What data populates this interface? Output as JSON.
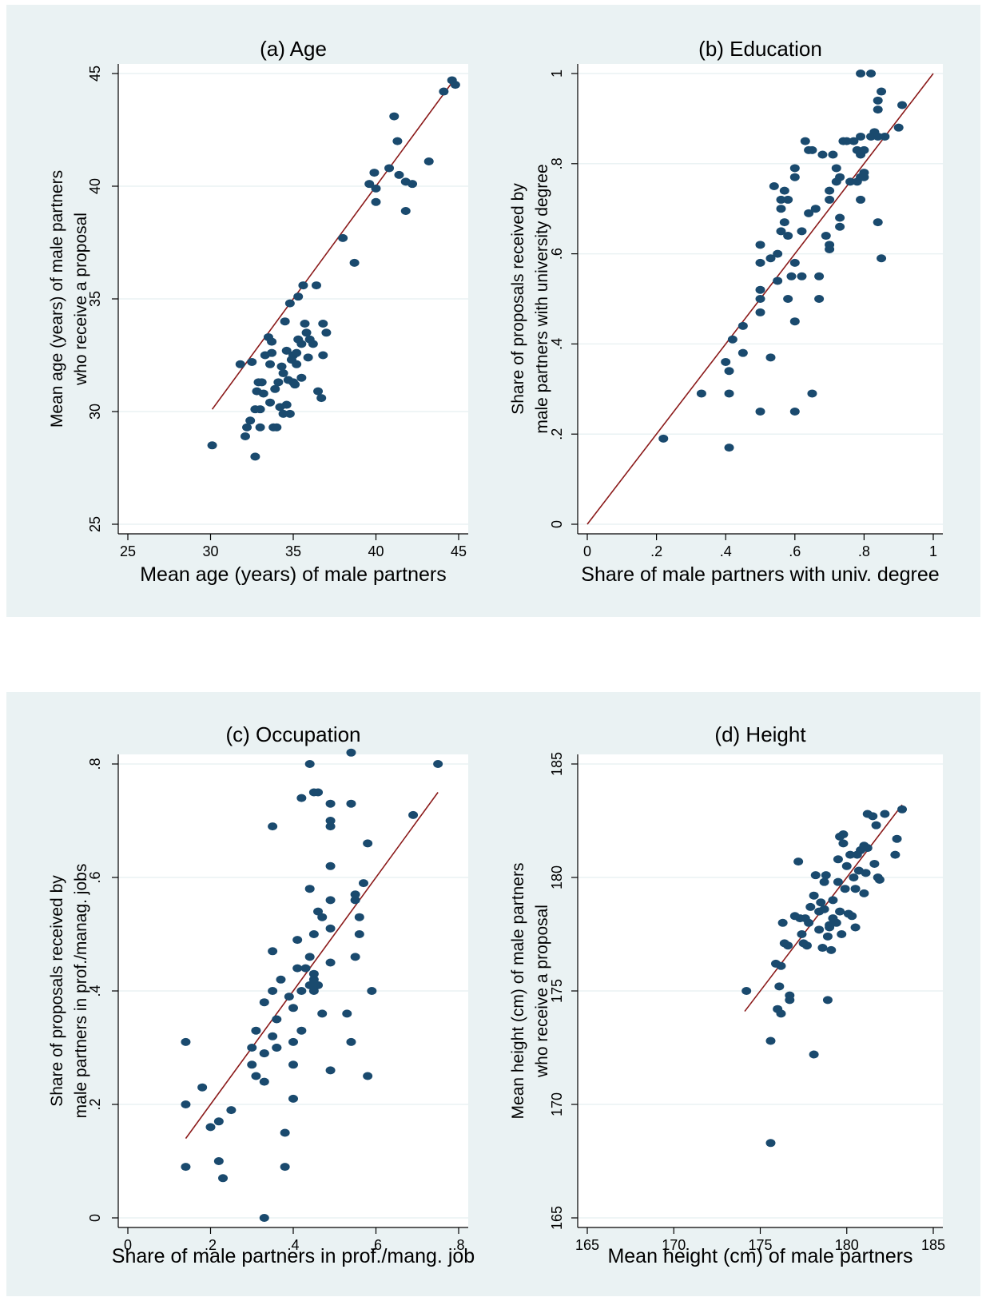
{
  "chart_data": [
    {
      "type": "scatter",
      "title": "(a) Age",
      "xlabel": "Mean age (years) of male partners",
      "ylabel_lines": [
        "Mean age (years) of male partners",
        "who receive a proposal"
      ],
      "xlim": [
        25,
        45
      ],
      "ylim": [
        25,
        45
      ],
      "xticks": [
        25,
        30,
        35,
        40,
        45
      ],
      "yticks": [
        25,
        30,
        35,
        40,
        45
      ],
      "xtick_labels": [
        "25",
        "30",
        "35",
        "40",
        "45"
      ],
      "ytick_labels": [
        "25",
        "30",
        "35",
        "40",
        "45"
      ],
      "grid": true,
      "fit_line": {
        "x": [
          30.1,
          44.8
        ],
        "y": [
          30.1,
          44.8
        ],
        "color": "#8b1a1a"
      },
      "marker_color": "#1a4a6e",
      "points": [
        [
          30.1,
          28.5
        ],
        [
          31.8,
          32.1
        ],
        [
          32.1,
          28.9
        ],
        [
          32.2,
          29.3
        ],
        [
          32.4,
          29.6
        ],
        [
          32.5,
          32.2
        ],
        [
          32.7,
          28.0
        ],
        [
          32.7,
          30.1
        ],
        [
          32.8,
          30.9
        ],
        [
          32.9,
          31.3
        ],
        [
          33.0,
          30.1
        ],
        [
          33.0,
          29.3
        ],
        [
          33.1,
          31.3
        ],
        [
          33.2,
          30.8
        ],
        [
          33.3,
          32.5
        ],
        [
          33.5,
          33.3
        ],
        [
          33.6,
          32.1
        ],
        [
          33.6,
          30.4
        ],
        [
          33.7,
          32.6
        ],
        [
          33.7,
          33.1
        ],
        [
          33.8,
          29.3
        ],
        [
          33.9,
          31.0
        ],
        [
          34.0,
          29.3
        ],
        [
          34.1,
          31.3
        ],
        [
          34.2,
          30.2
        ],
        [
          34.3,
          32.0
        ],
        [
          34.4,
          31.7
        ],
        [
          34.4,
          29.9
        ],
        [
          34.5,
          34.0
        ],
        [
          34.6,
          30.3
        ],
        [
          34.6,
          32.7
        ],
        [
          34.7,
          31.4
        ],
        [
          34.8,
          29.9
        ],
        [
          34.8,
          34.8
        ],
        [
          34.9,
          32.3
        ],
        [
          35.0,
          32.5
        ],
        [
          35.0,
          31.3
        ],
        [
          35.1,
          31.2
        ],
        [
          35.2,
          32.1
        ],
        [
          35.2,
          32.6
        ],
        [
          35.3,
          33.2
        ],
        [
          35.3,
          35.1
        ],
        [
          35.5,
          31.5
        ],
        [
          35.5,
          33.0
        ],
        [
          35.6,
          35.6
        ],
        [
          35.7,
          33.9
        ],
        [
          35.8,
          33.5
        ],
        [
          35.9,
          32.4
        ],
        [
          36.0,
          33.2
        ],
        [
          36.2,
          33.0
        ],
        [
          36.4,
          35.6
        ],
        [
          36.5,
          30.9
        ],
        [
          36.7,
          30.6
        ],
        [
          36.8,
          32.5
        ],
        [
          36.8,
          33.9
        ],
        [
          37.0,
          33.5
        ],
        [
          38.0,
          37.7
        ],
        [
          38.7,
          36.6
        ],
        [
          39.6,
          40.1
        ],
        [
          39.9,
          40.6
        ],
        [
          40.0,
          39.9
        ],
        [
          40.0,
          39.3
        ],
        [
          40.8,
          40.8
        ],
        [
          41.1,
          43.1
        ],
        [
          41.3,
          42.0
        ],
        [
          41.4,
          40.5
        ],
        [
          41.8,
          38.9
        ],
        [
          41.8,
          40.2
        ],
        [
          42.2,
          40.1
        ],
        [
          43.2,
          41.1
        ],
        [
          44.1,
          44.2
        ],
        [
          44.6,
          44.7
        ],
        [
          44.8,
          44.5
        ]
      ]
    },
    {
      "type": "scatter",
      "title": "(b) Education",
      "xlabel": "Share of male partners with univ. degree",
      "ylabel_lines": [
        "Share of proposals received by",
        "male partners with university degree"
      ],
      "xlim": [
        0,
        1
      ],
      "ylim": [
        0,
        1
      ],
      "xticks": [
        0,
        0.2,
        0.4,
        0.6,
        0.8,
        1
      ],
      "yticks": [
        0,
        0.2,
        0.4,
        0.6,
        0.8,
        1
      ],
      "xtick_labels": [
        "0",
        ".2",
        ".4",
        ".6",
        ".8",
        "1"
      ],
      "ytick_labels": [
        "0",
        ".2",
        ".4",
        ".6",
        ".8",
        "1"
      ],
      "grid": true,
      "fit_line": {
        "x": [
          0,
          1
        ],
        "y": [
          0,
          1
        ],
        "color": "#8b1a1a"
      },
      "marker_color": "#1a4a6e",
      "points": [
        [
          0.22,
          0.19
        ],
        [
          0.33,
          0.29
        ],
        [
          0.4,
          0.36
        ],
        [
          0.41,
          0.34
        ],
        [
          0.41,
          0.29
        ],
        [
          0.41,
          0.17
        ],
        [
          0.42,
          0.41
        ],
        [
          0.45,
          0.44
        ],
        [
          0.45,
          0.38
        ],
        [
          0.5,
          0.25
        ],
        [
          0.5,
          0.47
        ],
        [
          0.5,
          0.5
        ],
        [
          0.5,
          0.52
        ],
        [
          0.5,
          0.58
        ],
        [
          0.5,
          0.62
        ],
        [
          0.53,
          0.37
        ],
        [
          0.53,
          0.59
        ],
        [
          0.54,
          0.75
        ],
        [
          0.55,
          0.6
        ],
        [
          0.55,
          0.54
        ],
        [
          0.56,
          0.65
        ],
        [
          0.56,
          0.7
        ],
        [
          0.56,
          0.72
        ],
        [
          0.57,
          0.74
        ],
        [
          0.57,
          0.67
        ],
        [
          0.58,
          0.72
        ],
        [
          0.58,
          0.64
        ],
        [
          0.58,
          0.5
        ],
        [
          0.59,
          0.55
        ],
        [
          0.6,
          0.45
        ],
        [
          0.6,
          0.25
        ],
        [
          0.6,
          0.58
        ],
        [
          0.6,
          0.77
        ],
        [
          0.6,
          0.79
        ],
        [
          0.62,
          0.55
        ],
        [
          0.62,
          0.65
        ],
        [
          0.63,
          0.85
        ],
        [
          0.64,
          0.69
        ],
        [
          0.64,
          0.83
        ],
        [
          0.65,
          0.83
        ],
        [
          0.65,
          0.29
        ],
        [
          0.66,
          0.7
        ],
        [
          0.67,
          0.55
        ],
        [
          0.67,
          0.5
        ],
        [
          0.68,
          0.82
        ],
        [
          0.69,
          0.64
        ],
        [
          0.7,
          0.61
        ],
        [
          0.7,
          0.62
        ],
        [
          0.7,
          0.72
        ],
        [
          0.7,
          0.74
        ],
        [
          0.71,
          0.82
        ],
        [
          0.72,
          0.79
        ],
        [
          0.72,
          0.76
        ],
        [
          0.73,
          0.68
        ],
        [
          0.73,
          0.66
        ],
        [
          0.73,
          0.77
        ],
        [
          0.74,
          0.85
        ],
        [
          0.75,
          0.85
        ],
        [
          0.76,
          0.76
        ],
        [
          0.77,
          0.85
        ],
        [
          0.78,
          0.76
        ],
        [
          0.78,
          0.83
        ],
        [
          0.79,
          0.82
        ],
        [
          0.79,
          0.86
        ],
        [
          0.79,
          0.72
        ],
        [
          0.79,
          0.77
        ],
        [
          0.79,
          1.0
        ],
        [
          0.8,
          0.83
        ],
        [
          0.8,
          0.78
        ],
        [
          0.8,
          0.77
        ],
        [
          0.82,
          1.0
        ],
        [
          0.82,
          0.86
        ],
        [
          0.83,
          0.87
        ],
        [
          0.84,
          0.67
        ],
        [
          0.84,
          0.86
        ],
        [
          0.84,
          0.94
        ],
        [
          0.84,
          0.92
        ],
        [
          0.85,
          0.59
        ],
        [
          0.85,
          0.96
        ],
        [
          0.86,
          0.86
        ],
        [
          0.9,
          0.88
        ],
        [
          0.91,
          0.93
        ]
      ]
    },
    {
      "type": "scatter",
      "title": "(c) Occupation",
      "xlabel": "Share of male partners in prof./mang. job",
      "ylabel_lines": [
        "Share of proposals received by",
        "male partners in prof./manag. jobs"
      ],
      "xlim": [
        0,
        0.8
      ],
      "ylim": [
        0,
        0.8
      ],
      "xticks": [
        0,
        0.2,
        0.4,
        0.6,
        0.8
      ],
      "yticks": [
        0,
        0.2,
        0.4,
        0.6,
        0.8
      ],
      "xtick_labels": [
        "0",
        ".2",
        ".4",
        ".6",
        ".8"
      ],
      "ytick_labels": [
        "0",
        ".2",
        ".4",
        ".6",
        ".8"
      ],
      "grid": true,
      "fit_line": {
        "x": [
          0.14,
          0.75
        ],
        "y": [
          0.14,
          0.75
        ],
        "color": "#8b1a1a"
      },
      "marker_color": "#1a4a6e",
      "points": [
        [
          0.14,
          0.31
        ],
        [
          0.14,
          0.2
        ],
        [
          0.14,
          0.09
        ],
        [
          0.18,
          0.23
        ],
        [
          0.2,
          0.16
        ],
        [
          0.22,
          0.17
        ],
        [
          0.22,
          0.1
        ],
        [
          0.23,
          0.07
        ],
        [
          0.25,
          0.19
        ],
        [
          0.3,
          0.3
        ],
        [
          0.3,
          0.27
        ],
        [
          0.31,
          0.25
        ],
        [
          0.31,
          0.33
        ],
        [
          0.33,
          0.38
        ],
        [
          0.33,
          0.29
        ],
        [
          0.33,
          0.29
        ],
        [
          0.33,
          0.24
        ],
        [
          0.33,
          0.0
        ],
        [
          0.35,
          0.4
        ],
        [
          0.35,
          0.32
        ],
        [
          0.35,
          0.47
        ],
        [
          0.35,
          0.69
        ],
        [
          0.36,
          0.3
        ],
        [
          0.36,
          0.35
        ],
        [
          0.36,
          0.3
        ],
        [
          0.37,
          0.42
        ],
        [
          0.38,
          0.15
        ],
        [
          0.38,
          0.09
        ],
        [
          0.39,
          0.39
        ],
        [
          0.4,
          0.27
        ],
        [
          0.4,
          0.37
        ],
        [
          0.4,
          0.31
        ],
        [
          0.4,
          0.21
        ],
        [
          0.41,
          0.44
        ],
        [
          0.41,
          0.49
        ],
        [
          0.42,
          0.33
        ],
        [
          0.42,
          0.4
        ],
        [
          0.42,
          0.74
        ],
        [
          0.43,
          0.44
        ],
        [
          0.44,
          0.8
        ],
        [
          0.44,
          0.46
        ],
        [
          0.44,
          0.58
        ],
        [
          0.44,
          0.41
        ],
        [
          0.45,
          0.42
        ],
        [
          0.45,
          0.43
        ],
        [
          0.45,
          0.4
        ],
        [
          0.45,
          0.75
        ],
        [
          0.45,
          0.5
        ],
        [
          0.46,
          0.75
        ],
        [
          0.46,
          0.41
        ],
        [
          0.46,
          0.54
        ],
        [
          0.47,
          0.53
        ],
        [
          0.47,
          0.36
        ],
        [
          0.49,
          0.26
        ],
        [
          0.49,
          0.45
        ],
        [
          0.49,
          0.51
        ],
        [
          0.49,
          0.56
        ],
        [
          0.49,
          0.62
        ],
        [
          0.49,
          0.69
        ],
        [
          0.49,
          0.7
        ],
        [
          0.49,
          0.73
        ],
        [
          0.53,
          0.36
        ],
        [
          0.54,
          0.31
        ],
        [
          0.54,
          0.82
        ],
        [
          0.54,
          0.73
        ],
        [
          0.55,
          0.46
        ],
        [
          0.55,
          0.56
        ],
        [
          0.55,
          0.57
        ],
        [
          0.56,
          0.53
        ],
        [
          0.56,
          0.5
        ],
        [
          0.57,
          0.59
        ],
        [
          0.58,
          0.25
        ],
        [
          0.58,
          0.66
        ],
        [
          0.59,
          0.4
        ],
        [
          0.69,
          0.71
        ],
        [
          0.75,
          0.8
        ]
      ]
    },
    {
      "type": "scatter",
      "title": "(d) Height",
      "xlabel": "Mean height (cm) of male partners",
      "ylabel_lines": [
        "Mean height (cm) of male partners",
        "who receive a proposal"
      ],
      "xlim": [
        165,
        185
      ],
      "ylim": [
        165,
        185
      ],
      "xticks": [
        165,
        170,
        175,
        180,
        185
      ],
      "yticks": [
        165,
        170,
        175,
        180,
        185
      ],
      "xtick_labels": [
        "165",
        "170",
        "175",
        "180",
        "185"
      ],
      "ytick_labels": [
        "165",
        "170",
        "175",
        "180",
        "185"
      ],
      "grid": true,
      "fit_line": {
        "x": [
          174.1,
          183.2
        ],
        "y": [
          174.1,
          183.2
        ],
        "color": "#8b1a1a"
      },
      "marker_color": "#1a4a6e",
      "points": [
        [
          174.2,
          175.0
        ],
        [
          175.6,
          172.8
        ],
        [
          175.6,
          168.3
        ],
        [
          175.9,
          176.2
        ],
        [
          176.0,
          174.2
        ],
        [
          176.1,
          175.2
        ],
        [
          176.2,
          176.1
        ],
        [
          176.2,
          174.0
        ],
        [
          176.3,
          178.0
        ],
        [
          176.4,
          177.1
        ],
        [
          176.6,
          177.0
        ],
        [
          176.7,
          174.8
        ],
        [
          176.7,
          174.6
        ],
        [
          177.0,
          178.3
        ],
        [
          177.2,
          180.7
        ],
        [
          177.3,
          178.2
        ],
        [
          177.4,
          177.5
        ],
        [
          177.5,
          177.1
        ],
        [
          177.6,
          178.2
        ],
        [
          177.7,
          177.0
        ],
        [
          177.8,
          178.0
        ],
        [
          177.9,
          178.7
        ],
        [
          178.1,
          172.2
        ],
        [
          178.1,
          179.2
        ],
        [
          178.2,
          180.1
        ],
        [
          178.4,
          177.7
        ],
        [
          178.4,
          178.5
        ],
        [
          178.5,
          178.9
        ],
        [
          178.6,
          176.9
        ],
        [
          178.7,
          179.8
        ],
        [
          178.7,
          178.6
        ],
        [
          178.8,
          180.1
        ],
        [
          178.9,
          174.6
        ],
        [
          178.9,
          177.4
        ],
        [
          179.0,
          177.8
        ],
        [
          179.0,
          177.9
        ],
        [
          179.1,
          176.8
        ],
        [
          179.2,
          178.2
        ],
        [
          179.2,
          179.0
        ],
        [
          179.4,
          178.0
        ],
        [
          179.5,
          179.8
        ],
        [
          179.5,
          180.8
        ],
        [
          179.6,
          181.8
        ],
        [
          179.6,
          178.5
        ],
        [
          179.7,
          177.5
        ],
        [
          179.8,
          181.9
        ],
        [
          179.8,
          181.5
        ],
        [
          179.9,
          179.5
        ],
        [
          180.0,
          180.5
        ],
        [
          180.1,
          178.4
        ],
        [
          180.2,
          181.0
        ],
        [
          180.3,
          178.3
        ],
        [
          180.4,
          180.0
        ],
        [
          180.5,
          177.8
        ],
        [
          180.5,
          179.5
        ],
        [
          180.6,
          181.0
        ],
        [
          180.7,
          180.3
        ],
        [
          180.8,
          181.2
        ],
        [
          181.0,
          181.4
        ],
        [
          181.0,
          179.3
        ],
        [
          181.1,
          180.2
        ],
        [
          181.2,
          181.3
        ],
        [
          181.2,
          182.8
        ],
        [
          181.5,
          182.7
        ],
        [
          181.6,
          180.6
        ],
        [
          181.7,
          182.3
        ],
        [
          181.8,
          180.0
        ],
        [
          181.9,
          179.9
        ],
        [
          182.2,
          182.8
        ],
        [
          182.8,
          181.0
        ],
        [
          182.9,
          181.7
        ],
        [
          183.2,
          183.0
        ]
      ]
    }
  ]
}
